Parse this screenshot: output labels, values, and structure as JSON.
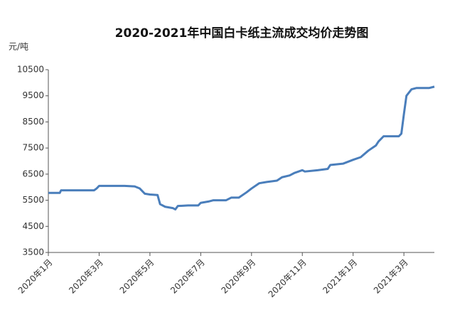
{
  "chart_data": {
    "type": "line",
    "title": "2020-2021年中国白卡纸主流成交均价走势图",
    "y_unit": "元/吨",
    "x": [
      0,
      0.45,
      0.5,
      1.8,
      1.9,
      2.0,
      3.0,
      3.4,
      3.6,
      3.8,
      4.0,
      4.3,
      4.4,
      4.6,
      4.9,
      5.0,
      5.1,
      5.5,
      5.9,
      6.0,
      6.3,
      6.5,
      7.0,
      7.2,
      7.5,
      7.8,
      8.0,
      8.3,
      8.6,
      9.0,
      9.2,
      9.5,
      9.7,
      10.0,
      10.1,
      10.6,
      11.0,
      11.1,
      11.6,
      12.0,
      12.3,
      12.6,
      12.9,
      13.0,
      13.2,
      13.5,
      13.8,
      13.9,
      14.0,
      14.1,
      14.3,
      14.5,
      15.0,
      15.2
    ],
    "series": [
      {
        "name": "白卡纸主流成交均价",
        "color": "#4a7ebb",
        "values": [
          5780,
          5780,
          5880,
          5880,
          5950,
          6050,
          6050,
          6030,
          5950,
          5750,
          5720,
          5700,
          5350,
          5250,
          5200,
          5150,
          5280,
          5300,
          5300,
          5400,
          5450,
          5500,
          5500,
          5600,
          5600,
          5800,
          5950,
          6150,
          6200,
          6250,
          6380,
          6450,
          6550,
          6650,
          6600,
          6650,
          6700,
          6850,
          6900,
          7050,
          7150,
          7400,
          7600,
          7750,
          7950,
          7950,
          7950,
          8050,
          8800,
          9500,
          9750,
          9800,
          9800,
          9850
        ]
      }
    ],
    "xlim": [
      0,
      15.2
    ],
    "xticks": [
      {
        "value": 0,
        "label": "2020年1月"
      },
      {
        "value": 2,
        "label": "2020年3月"
      },
      {
        "value": 4,
        "label": "2020年5月"
      },
      {
        "value": 6,
        "label": "2020年7月"
      },
      {
        "value": 8,
        "label": "2020年9月"
      },
      {
        "value": 10,
        "label": "2020年11月"
      },
      {
        "value": 12,
        "label": "2021年1月"
      },
      {
        "value": 14,
        "label": "2021年3月"
      }
    ],
    "ylim": [
      3500,
      10500
    ],
    "yticks": [
      3500,
      4500,
      5500,
      6500,
      7500,
      8500,
      9500,
      10500
    ],
    "grid": false
  }
}
